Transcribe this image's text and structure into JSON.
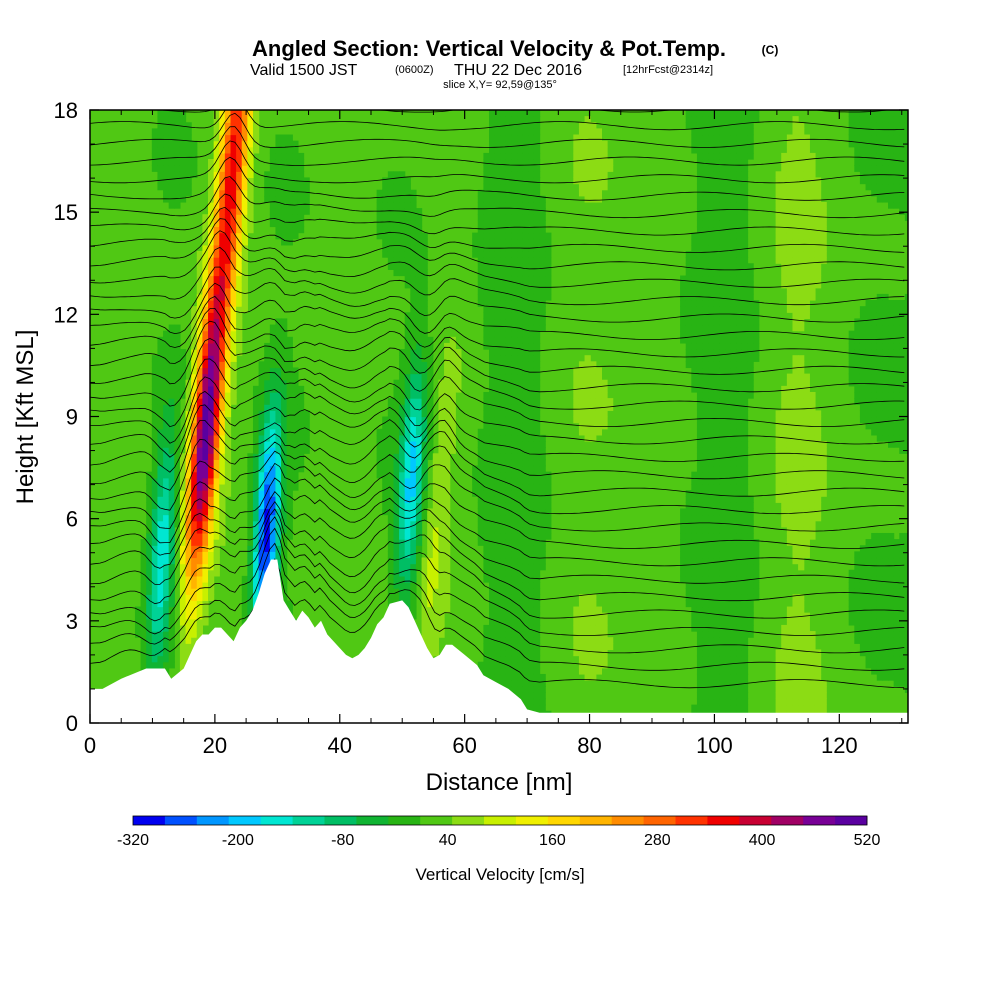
{
  "title": {
    "main": "Angled Section: Vertical Velocity & Pot.Temp.",
    "main_unit": "(C)",
    "valid_prefix": "Valid 1500 JST",
    "valid_z": "(0600Z)",
    "valid_date": "THU 22 Dec 2016",
    "valid_fcst": "[12hrFcst@2314z]",
    "slice": "slice X,Y= 92,59@135°"
  },
  "chart_data": {
    "type": "heatmap",
    "xlabel": "Distance [nm]",
    "ylabel": "Height [Kft MSL]",
    "xlim": [
      0,
      131
    ],
    "ylim": [
      0,
      18
    ],
    "xticks": [
      0,
      20,
      40,
      60,
      80,
      100,
      120
    ],
    "yticks": [
      0,
      3,
      6,
      9,
      12,
      15,
      18
    ],
    "colorbar": {
      "label": "Vertical Velocity [cm/s]",
      "tick_labels": [
        "-320",
        "-200",
        "-80",
        "40",
        "160",
        "280",
        "400",
        "520"
      ],
      "tick_values": [
        -320,
        -200,
        -80,
        40,
        160,
        280,
        400,
        520
      ],
      "min": -320,
      "max": 520,
      "colors": [
        "#0000f0",
        "#0050ff",
        "#0096ff",
        "#00c8ff",
        "#00e6d2",
        "#00d296",
        "#00be64",
        "#10b432",
        "#28b414",
        "#50c814",
        "#8cdc14",
        "#c8f000",
        "#f0f000",
        "#ffd700",
        "#ffb400",
        "#ff8c00",
        "#ff6400",
        "#ff3200",
        "#f00000",
        "#c80032",
        "#a00064",
        "#780096",
        "#5a00a0"
      ]
    },
    "terrain_kft": [
      [
        0,
        1.0
      ],
      [
        2,
        1.0
      ],
      [
        5,
        1.3
      ],
      [
        9,
        1.6
      ],
      [
        12,
        1.6
      ],
      [
        13,
        1.3
      ],
      [
        15,
        1.6
      ],
      [
        16,
        2.0
      ],
      [
        17,
        2.4
      ],
      [
        18,
        2.6
      ],
      [
        19,
        2.6
      ],
      [
        20,
        2.8
      ],
      [
        21,
        2.8
      ],
      [
        22,
        2.6
      ],
      [
        23,
        2.4
      ],
      [
        24,
        2.8
      ],
      [
        25,
        3.0
      ],
      [
        26,
        3.3
      ],
      [
        27,
        3.8
      ],
      [
        28,
        4.4
      ],
      [
        29,
        4.8
      ],
      [
        30,
        4.8
      ],
      [
        31,
        3.6
      ],
      [
        32,
        3.3
      ],
      [
        33,
        3.0
      ],
      [
        34,
        3.3
      ],
      [
        35,
        3.1
      ],
      [
        36,
        2.8
      ],
      [
        37,
        3.0
      ],
      [
        38,
        2.6
      ],
      [
        39,
        2.4
      ],
      [
        40,
        2.2
      ],
      [
        41,
        2.0
      ],
      [
        42,
        1.9
      ],
      [
        43,
        2.0
      ],
      [
        44,
        2.2
      ],
      [
        45,
        2.5
      ],
      [
        46,
        2.9
      ],
      [
        47,
        3.1
      ],
      [
        48,
        3.5
      ],
      [
        50,
        3.6
      ],
      [
        51,
        3.4
      ],
      [
        52,
        3.0
      ],
      [
        53,
        2.6
      ],
      [
        54,
        2.2
      ],
      [
        55,
        1.9
      ],
      [
        56,
        2.0
      ],
      [
        57,
        2.3
      ],
      [
        58,
        2.3
      ],
      [
        60,
        2.0
      ],
      [
        62,
        1.7
      ],
      [
        63,
        1.4
      ],
      [
        65,
        1.2
      ],
      [
        67,
        1.0
      ],
      [
        69,
        0.7
      ],
      [
        70,
        0.4
      ],
      [
        72,
        0.3
      ],
      [
        131,
        0.3
      ]
    ],
    "velocity_features": [
      {
        "kind": "updraft",
        "x_nm": 18.5,
        "z_kft": 8.5,
        "peak_cm_s": 480
      },
      {
        "kind": "updraft",
        "x_nm": 23.0,
        "z_kft": 16.5,
        "peak_cm_s": 320
      },
      {
        "kind": "downdraft",
        "x_nm": 11.5,
        "z_kft": 5.0,
        "peak_cm_s": -180
      },
      {
        "kind": "downdraft",
        "x_nm": 28.3,
        "z_kft": 5.6,
        "peak_cm_s": -320
      },
      {
        "kind": "downdraft",
        "x_nm": 51.5,
        "z_kft": 7.2,
        "peak_cm_s": -200
      },
      {
        "kind": "updraft",
        "x_nm": 55.0,
        "z_kft": 5.0,
        "peak_cm_s": 60
      }
    ]
  },
  "colors": {
    "background_field": "#50c814",
    "terrain": "#ffffff",
    "contour": "#000000"
  }
}
